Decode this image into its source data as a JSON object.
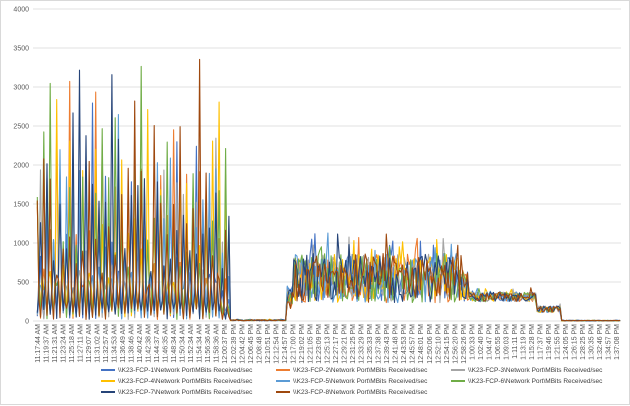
{
  "chart_data": {
    "type": "line",
    "title": "",
    "xlabel": "",
    "ylabel": "",
    "ylim": [
      0,
      4000
    ],
    "yticks": [
      0,
      500,
      1000,
      1500,
      2000,
      2500,
      3000,
      3500,
      4000
    ],
    "grid": true,
    "legend_placement": "bottom",
    "x_tick_labels": [
      "11:17:44 AM",
      "11:19:37 AM",
      "11:21:31 AM",
      "11:23:24 AM",
      "11:25:18 AM",
      "11:27:11 AM",
      "11:29:07 AM",
      "11:31:02 AM",
      "11:32:57 AM",
      "11:34:53 AM",
      "11:36:49 AM",
      "11:38:46 AM",
      "11:40:42 AM",
      "11:42:38 AM",
      "11:44:37 AM",
      "11:46:35 AM",
      "11:48:34 AM",
      "11:50:34 AM",
      "11:52:34 AM",
      "11:54:34 AM",
      "11:56:36 AM",
      "11:58:36 AM",
      "12:00:37 PM",
      "12:02:39 PM",
      "12:04:42 PM",
      "12:06:45 PM",
      "12:08:48 PM",
      "12:10:51 PM",
      "12:12:54 PM",
      "12:14:57 PM",
      "12:17:00 PM",
      "12:19:02 PM",
      "12:21:05 PM",
      "12:23:09 PM",
      "12:25:13 PM",
      "12:27:17 PM",
      "12:29:21 PM",
      "12:31:25 PM",
      "12:33:29 PM",
      "12:35:33 PM",
      "12:37:38 PM",
      "12:39:43 PM",
      "12:41:48 PM",
      "12:43:53 PM",
      "12:45:57 PM",
      "12:48:01 PM",
      "12:50:06 PM",
      "12:52:10 PM",
      "12:54:15 PM",
      "12:56:20 PM",
      "12:58:26 PM",
      "1:00:33 PM",
      "1:02:40 PM",
      "1:04:47 PM",
      "1:06:55 PM",
      "1:09:03 PM",
      "1:11:11 PM",
      "1:13:19 PM",
      "1:15:28 PM",
      "1:17:37 PM",
      "1:19:46 PM",
      "1:21:55 PM",
      "1:24:05 PM",
      "1:26:15 PM",
      "1:28:25 PM",
      "1:30:35 PM",
      "1:32:46 PM",
      "1:34:57 PM",
      "1:37:08 PM"
    ],
    "profile": {
      "segments": [
        {
          "until_index": 21.9,
          "base": 400,
          "amplitude": 3000,
          "oscillating": true
        },
        {
          "until_index": 22.5,
          "base": 150,
          "amplitude": 150,
          "oscillating": true
        },
        {
          "until_index": 29.2,
          "base": 10,
          "amplitude": 10,
          "oscillating": false
        },
        {
          "until_index": 30.0,
          "base": 300,
          "amplitude": 200,
          "oscillating": false
        },
        {
          "until_index": 49.5,
          "base": 550,
          "amplitude": 450,
          "oscillating": false
        },
        {
          "until_index": 50.5,
          "base": 450,
          "amplitude": 300,
          "oscillating": false
        },
        {
          "until_index": 58.5,
          "base": 310,
          "amplitude": 90,
          "oscillating": false
        },
        {
          "until_index": 61.5,
          "base": 150,
          "amplitude": 60,
          "oscillating": false
        },
        {
          "until_index": 68,
          "base": 5,
          "amplitude": 5,
          "oscillating": false
        }
      ],
      "points_per_series": 360
    },
    "series": [
      {
        "name": "\\\\K23-FCP-1\\Network Port\\MBits Received/sec",
        "color": "#4472c4",
        "peak": 3470
      },
      {
        "name": "\\\\K23-FCP-2\\Network Port\\MBits Received/sec",
        "color": "#ed7d31",
        "peak": 3760
      },
      {
        "name": "\\\\K23-FCP-3\\Network Port\\MBits Received/sec",
        "color": "#a5a5a5",
        "peak": 2900
      },
      {
        "name": "\\\\K23-FCP-4\\Network Port\\MBits Received/sec",
        "color": "#ffc000",
        "peak": 3530
      },
      {
        "name": "\\\\K23-FCP-5\\Network Port\\MBits Received/sec",
        "color": "#5b9bd5",
        "peak": 3080
      },
      {
        "name": "\\\\K23-FCP-6\\Network Port\\MBits Received/sec",
        "color": "#70ad47",
        "peak": 3540
      },
      {
        "name": "\\\\K23-FCP-7\\Network Port\\MBits Received/sec",
        "color": "#264478",
        "peak": 3600
      },
      {
        "name": "\\\\K23-FCP-8\\Network Port\\MBits Received/sec",
        "color": "#9e480e",
        "peak": 3490
      }
    ]
  }
}
